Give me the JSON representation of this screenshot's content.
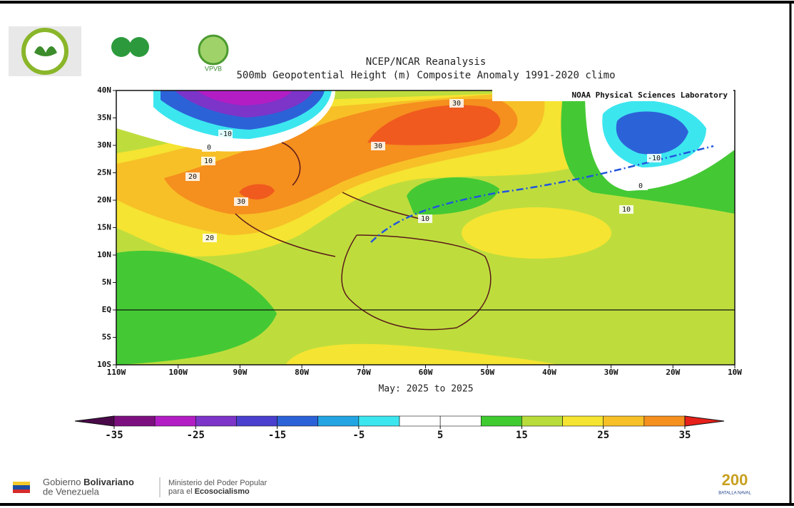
{
  "header": {
    "logo_text": "VPVB",
    "title": "NCEP/NCAR Reanalysis",
    "subtitle": "500mb Geopotential Height (m) Composite Anomaly 1991-2020 climo",
    "credit": "NOAA Physical Sciences Laboratory"
  },
  "map": {
    "lat_labels": [
      "40N",
      "35N",
      "30N",
      "25N",
      "20N",
      "15N",
      "10N",
      "5N",
      "EQ",
      "5S",
      "10S"
    ],
    "lon_labels": [
      "110W",
      "100W",
      "90W",
      "80W",
      "70W",
      "60W",
      "50W",
      "40W",
      "30W",
      "20W",
      "10W"
    ],
    "period": "May: 2025 to 2025",
    "contour_labels": [
      "30",
      "30",
      "-10",
      "0",
      "10",
      "20",
      "30",
      "20",
      "10",
      "10",
      "-10",
      "0"
    ]
  },
  "colorbar": {
    "ticks": [
      -35,
      -25,
      -15,
      -5,
      5,
      15,
      25,
      35
    ],
    "under": "#4a0a4a",
    "over": "#e8201a",
    "colors": [
      "#7d107f",
      "#b21ec4",
      "#7c34c9",
      "#4a3fcf",
      "#2c62d8",
      "#22a5e2",
      "#3ce6ef",
      "#ffffff",
      "#ffffff",
      "#3fcb2f",
      "#b8dc3b",
      "#f5e431",
      "#f7c027",
      "#f58f1e"
    ]
  },
  "footer": {
    "gov": [
      "Gobierno",
      "Bolivariano",
      "de Venezuela"
    ],
    "ministry": [
      "Ministerio del Poder Popular",
      "para el",
      "Ecosocialismo"
    ],
    "badge": [
      "200",
      "BATALLA NAVAL"
    ]
  }
}
